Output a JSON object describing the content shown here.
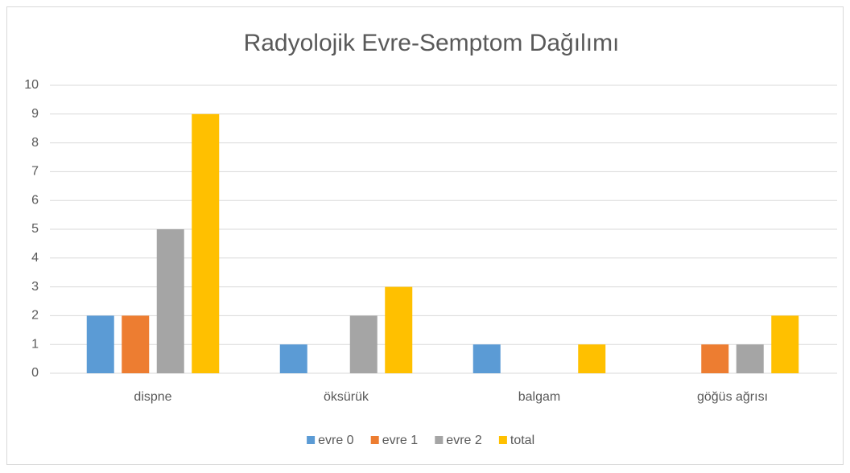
{
  "chart_data": {
    "type": "bar",
    "title": "Radyolojik Evre-Semptom Dağılımı",
    "categories": [
      "dispne",
      "öksürük",
      "balgam",
      "göğüs ağrısı"
    ],
    "series": [
      {
        "name": "evre 0",
        "color": "#5b9bd5",
        "values": [
          2,
          1,
          1,
          0
        ]
      },
      {
        "name": "evre 1",
        "color": "#ed7d31",
        "values": [
          2,
          0,
          0,
          1
        ]
      },
      {
        "name": "evre 2",
        "color": "#a5a5a5",
        "values": [
          5,
          2,
          0,
          1
        ]
      },
      {
        "name": "total",
        "color": "#ffc000",
        "values": [
          9,
          3,
          1,
          2
        ]
      }
    ],
    "ylim": [
      0,
      10
    ],
    "yticks": [
      0,
      1,
      2,
      3,
      4,
      5,
      6,
      7,
      8,
      9,
      10
    ],
    "grid": true,
    "legend": "bottom"
  }
}
